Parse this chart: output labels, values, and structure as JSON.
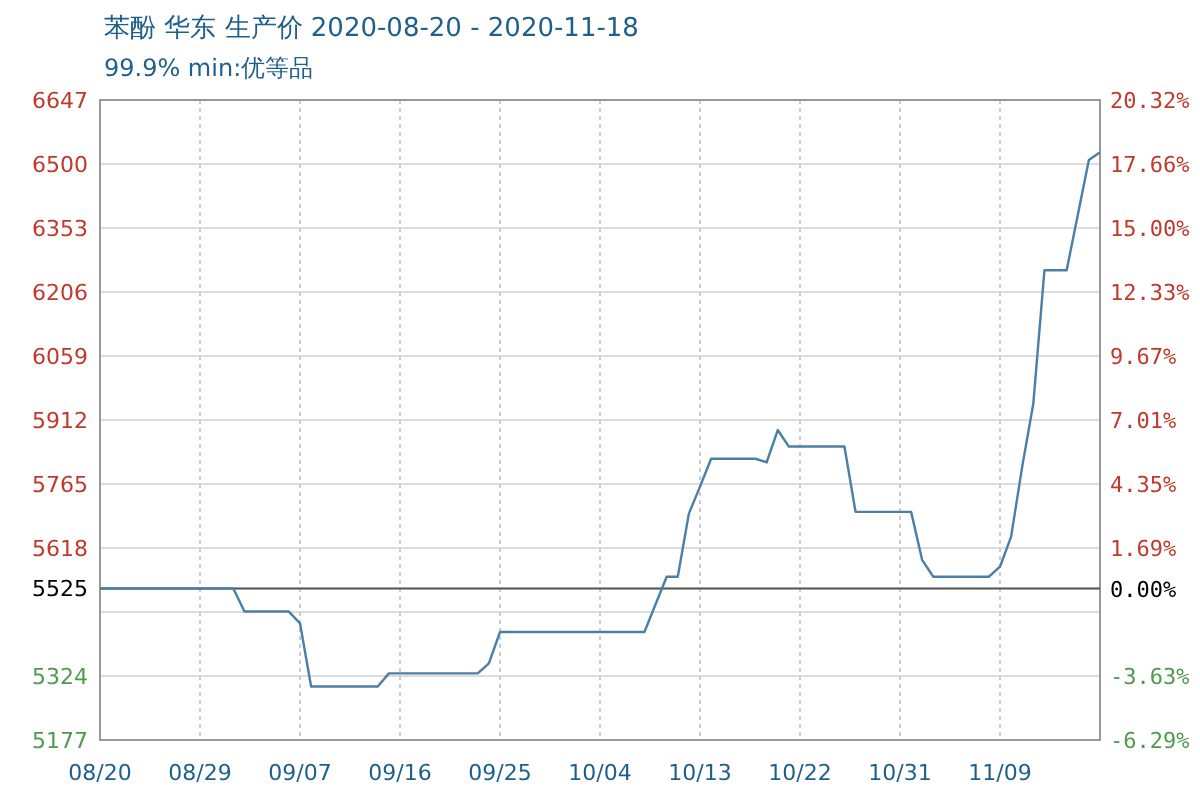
{
  "chart_data": {
    "type": "line",
    "title": "苯酚 华东 生产价 2020-08-20 - 2020-11-18",
    "subtitle": "99.9% min:优等品",
    "x": [
      "2020-08-20",
      "2020-09-01",
      "2020-09-02",
      "2020-09-06",
      "2020-09-07",
      "2020-09-08",
      "2020-09-14",
      "2020-09-15",
      "2020-09-23",
      "2020-09-24",
      "2020-09-25",
      "2020-10-08",
      "2020-10-10",
      "2020-10-11",
      "2020-10-12",
      "2020-10-13",
      "2020-10-14",
      "2020-10-18",
      "2020-10-19",
      "2020-10-20",
      "2020-10-21",
      "2020-10-26",
      "2020-10-27",
      "2020-11-01",
      "2020-11-02",
      "2020-11-03",
      "2020-11-08",
      "2020-11-09",
      "2020-11-10",
      "2020-11-11",
      "2020-11-12",
      "2020-11-13",
      "2020-11-15",
      "2020-11-17",
      "2020-11-18"
    ],
    "series": [
      {
        "color": "#4a7fa8",
        "values": [
          5525,
          5525,
          5472,
          5472,
          5445,
          5300,
          5300,
          5330,
          5330,
          5353,
          5425,
          5425,
          5552,
          5552,
          5697,
          5759,
          5823,
          5823,
          5815,
          5889,
          5851,
          5851,
          5701,
          5701,
          5590,
          5552,
          5552,
          5575,
          5644,
          5805,
          5950,
          6256,
          6256,
          6509,
          6527
        ]
      }
    ],
    "xlim": [
      "2020-08-20",
      "2020-11-18"
    ],
    "xticks": [
      {
        "value": "2020-08-20",
        "label": "08/20"
      },
      {
        "value": "2020-08-29",
        "label": "08/29"
      },
      {
        "value": "2020-09-07",
        "label": "09/07"
      },
      {
        "value": "2020-09-16",
        "label": "09/16"
      },
      {
        "value": "2020-09-25",
        "label": "09/25"
      },
      {
        "value": "2020-10-04",
        "label": "10/04"
      },
      {
        "value": "2020-10-13",
        "label": "10/13"
      },
      {
        "value": "2020-10-22",
        "label": "10/22"
      },
      {
        "value": "2020-10-31",
        "label": "10/31"
      },
      {
        "value": "2020-11-09",
        "label": "11/09"
      }
    ],
    "ylim": [
      5177,
      6647
    ],
    "yticks": [
      5177,
      5324,
      {
        "value": 5471,
        "label": null
      },
      5525,
      5618,
      5765,
      5912,
      6059,
      6206,
      6353,
      6500,
      6647
    ],
    "y2lim": [
      -6.29,
      20.32
    ],
    "y2ticks": [
      {
        "value": -6.29,
        "label": "-6.29%"
      },
      {
        "value": -3.63,
        "label": "-3.63%"
      },
      {
        "value": 0,
        "label": "0.00%"
      },
      {
        "value": 1.69,
        "label": "1.69%"
      },
      {
        "value": 4.35,
        "label": "4.35%"
      },
      {
        "value": 7.01,
        "label": "7.01%"
      },
      {
        "value": 9.67,
        "label": "9.67%"
      },
      {
        "value": 12.33,
        "label": "12.33%"
      },
      {
        "value": 15.0,
        "label": "15.00%"
      },
      {
        "value": 17.66,
        "label": "17.66%"
      },
      {
        "value": 20.32,
        "label": "20.32%"
      }
    ],
    "ref_lines": [
      {
        "axis": "y",
        "value": 5525,
        "color": "#555555"
      }
    ],
    "grid": true
  }
}
